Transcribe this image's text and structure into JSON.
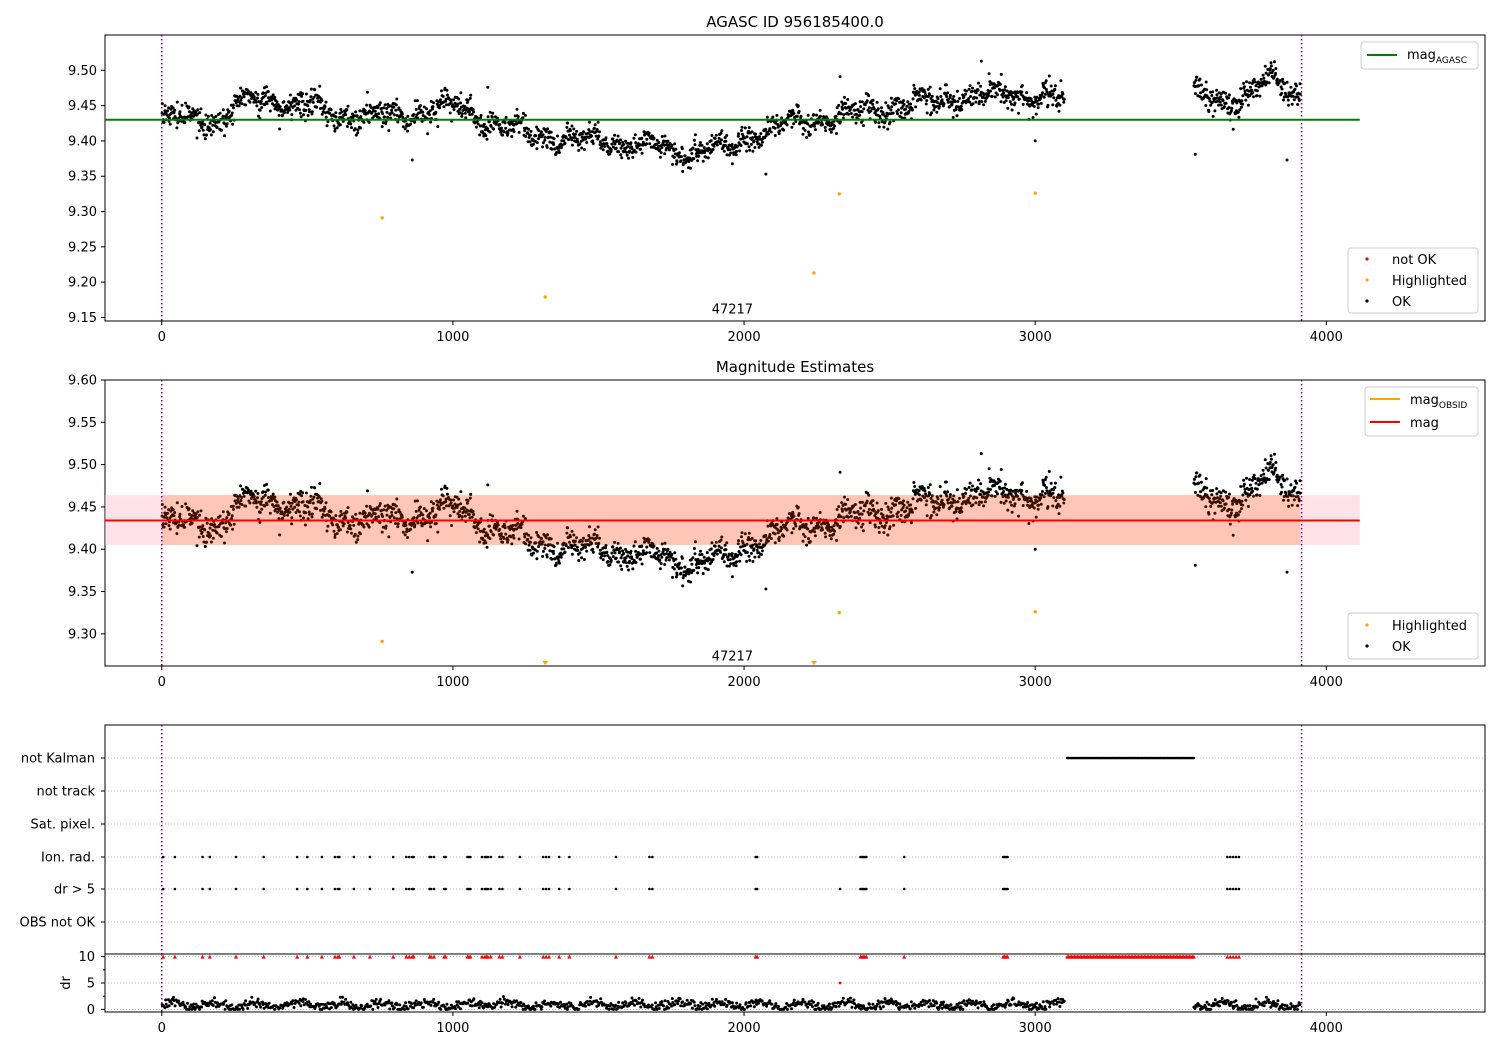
{
  "chart_data": [
    {
      "type": "scatter",
      "title": "AGASC ID 956185400.0",
      "xlabel": "",
      "ylabel": "",
      "xlim": [
        -195,
        4545
      ],
      "ylim": [
        9.145,
        9.55
      ],
      "xticks": [
        "0",
        "1000",
        "2000",
        "3000",
        "4000"
      ],
      "yticks": [
        "9.15",
        "9.20",
        "9.25",
        "9.30",
        "9.35",
        "9.40",
        "9.45",
        "9.50"
      ],
      "vlines": [
        0,
        3915
      ],
      "hline": {
        "label": "mag",
        "label_sub": "AGASC",
        "y": 9.43,
        "x": [
          -195,
          4115
        ]
      },
      "annotation": {
        "text": "47217",
        "x": 1960,
        "y": 9.16
      },
      "ok_trend": {
        "x": [
          0,
          200,
          300,
          450,
          600,
          800,
          1000,
          1200,
          1400,
          1600,
          1800,
          1950,
          2050,
          2200,
          2400,
          2600,
          2800,
          3000,
          3100,
          3550,
          3700,
          3820,
          3910
        ],
        "y": [
          9.43,
          9.43,
          9.46,
          9.455,
          9.435,
          9.435,
          9.45,
          9.415,
          9.405,
          9.395,
          9.385,
          9.39,
          9.415,
          9.425,
          9.44,
          9.455,
          9.465,
          9.465,
          9.455,
          9.465,
          9.455,
          9.49,
          9.465
        ]
      },
      "highlighted": {
        "x": [
          757,
          1317,
          2240,
          2327,
          3000
        ],
        "y": [
          9.291,
          9.179,
          9.213,
          9.325,
          9.326
        ]
      },
      "legends": [
        {
          "position": "upper-right",
          "entries": [
            {
              "label": "mag",
              "label_sub": "AGASC",
              "color": "#008000",
              "kind": "line"
            }
          ]
        },
        {
          "position": "lower-right",
          "entries": [
            {
              "label": "not OK",
              "color": "#ff0000",
              "kind": "dot"
            },
            {
              "label": "Highlighted",
              "color": "#ffa500",
              "kind": "dot"
            },
            {
              "label": "OK",
              "color": "#000000",
              "kind": "dot"
            }
          ]
        }
      ]
    },
    {
      "type": "scatter",
      "title": "Magnitude Estimates",
      "xlabel": "",
      "ylabel": "",
      "xlim": [
        -195,
        4545
      ],
      "ylim": [
        9.262,
        9.6
      ],
      "xticks": [
        "0",
        "1000",
        "2000",
        "3000",
        "4000"
      ],
      "yticks": [
        "9.30",
        "9.35",
        "9.40",
        "9.45",
        "9.50",
        "9.55",
        "9.60"
      ],
      "vlines": [
        0,
        3915
      ],
      "hline": {
        "label": "mag",
        "y": 9.434,
        "x": [
          -195,
          4115
        ]
      },
      "band": {
        "ymin": 9.405,
        "ymax": 9.464,
        "x": [
          -195,
          4115
        ]
      },
      "annotation": {
        "text": "47217",
        "x": 1960,
        "y": 9.272
      },
      "highlighted": {
        "x": [
          757,
          2327,
          3000
        ],
        "y": [
          9.291,
          9.325,
          9.326
        ]
      },
      "highlighted_below_range": {
        "x": [
          1317,
          2240
        ]
      },
      "legends": [
        {
          "position": "upper-right",
          "entries": [
            {
              "label": "mag",
              "label_sub": "OBSID",
              "color": "#ffa500",
              "kind": "line"
            },
            {
              "label": "mag",
              "color": "#ff0000",
              "kind": "line"
            }
          ]
        },
        {
          "position": "lower-right",
          "entries": [
            {
              "label": "Highlighted",
              "color": "#ffa500",
              "kind": "dot"
            },
            {
              "label": "OK",
              "color": "#000000",
              "kind": "dot"
            }
          ]
        }
      ]
    },
    {
      "type": "scatter",
      "title": "",
      "xlim": [
        -195,
        4545
      ],
      "xticks": [
        "0",
        "1000",
        "2000",
        "3000",
        "4000"
      ],
      "vlines": [
        0,
        3915
      ],
      "categories": [
        "not Kalman",
        "not track",
        "Sat. pixel.",
        "Ion. rad.",
        "dr > 5",
        "OBS not OK"
      ],
      "flag_intervals": {
        "not Kalman": [
          [
            3110,
            3545
          ]
        ]
      },
      "flag_points": {
        "Ion. rad.": [
          5,
          45,
          140,
          165,
          255,
          350,
          465,
          500,
          550,
          595,
          605,
          610,
          660,
          715,
          795,
          840,
          850,
          860,
          865,
          920,
          925,
          935,
          970,
          975,
          1050,
          1055,
          1060,
          1100,
          1110,
          1115,
          1120,
          1130,
          1160,
          1170,
          1230,
          1310,
          1320,
          1330,
          1365,
          1400,
          1560,
          1675,
          1685,
          2040,
          2045,
          2400,
          2405,
          2410,
          2415,
          2420,
          2550,
          2890,
          2895,
          2900,
          2905,
          3660,
          3670,
          3680,
          3690,
          3700
        ],
        "dr > 5": [
          5,
          45,
          140,
          165,
          255,
          350,
          465,
          500,
          550,
          595,
          605,
          610,
          660,
          715,
          795,
          840,
          850,
          860,
          865,
          920,
          925,
          935,
          970,
          975,
          1050,
          1055,
          1060,
          1100,
          1110,
          1115,
          1120,
          1130,
          1160,
          1170,
          1230,
          1310,
          1320,
          1330,
          1365,
          1400,
          1560,
          1675,
          1685,
          2040,
          2045,
          2330,
          2400,
          2405,
          2410,
          2415,
          2420,
          2550,
          2890,
          2895,
          2900,
          2905,
          3660,
          3670,
          3680,
          3690,
          3700
        ]
      }
    },
    {
      "type": "scatter",
      "title": "",
      "xlabel": "",
      "ylabel": "dr",
      "xlim": [
        -195,
        4545
      ],
      "ylim": [
        -0.5,
        10.5
      ],
      "yticks": [
        "0",
        "5",
        "10"
      ],
      "xticks": [
        "0",
        "1000",
        "2000",
        "3000",
        "4000"
      ],
      "vlines": [
        0,
        3915
      ],
      "dr_high_intervals": [
        [
          3110,
          3545
        ]
      ],
      "dr_high_points": [
        5,
        45,
        140,
        165,
        255,
        350,
        465,
        500,
        550,
        595,
        605,
        610,
        660,
        715,
        795,
        840,
        850,
        860,
        865,
        920,
        925,
        935,
        970,
        975,
        1050,
        1055,
        1060,
        1100,
        1110,
        1115,
        1120,
        1130,
        1160,
        1170,
        1230,
        1310,
        1320,
        1330,
        1365,
        1400,
        1560,
        1675,
        1685,
        2040,
        2045,
        2400,
        2405,
        2410,
        2415,
        2420,
        2550,
        2890,
        2895,
        2900,
        2905,
        3660,
        3670,
        3680,
        3690,
        3700
      ],
      "dr_mid_points": {
        "x": [
          2330
        ],
        "y": [
          5
        ]
      }
    }
  ],
  "colors": {
    "ok": "#000000",
    "highlighted": "#ffa500",
    "not_ok": "#ff0000",
    "agasc_line": "#008000",
    "mag_line": "#ff0000",
    "band": "#ffa07a",
    "vline": "#800080",
    "grid": "#b0b0b0"
  }
}
